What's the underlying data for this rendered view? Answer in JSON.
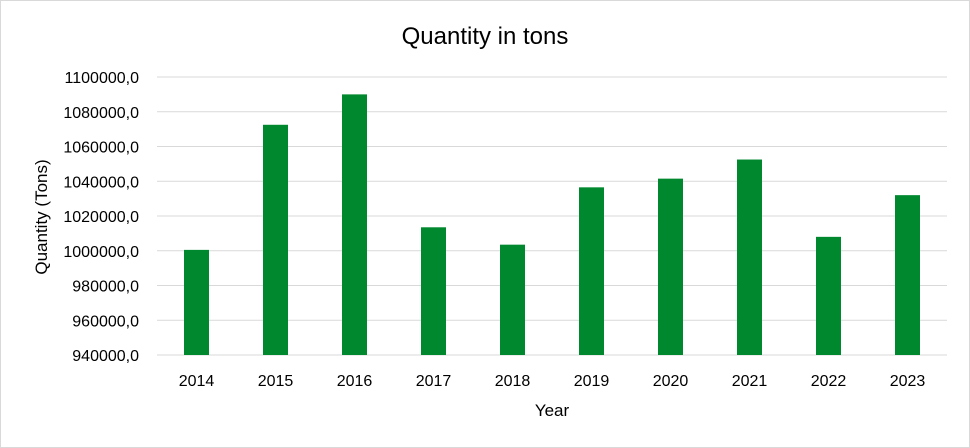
{
  "chart_data": {
    "type": "bar",
    "title": "Quantity in tons",
    "xlabel": "Year",
    "ylabel": "Quantity (Tons)",
    "categories": [
      "2014",
      "2015",
      "2016",
      "2017",
      "2018",
      "2019",
      "2020",
      "2021",
      "2022",
      "2023"
    ],
    "values": [
      1000500,
      1072500,
      1090000,
      1013500,
      1003500,
      1036500,
      1041500,
      1052500,
      1008000,
      1032000
    ],
    "ylim": [
      940000,
      1100000
    ],
    "yticks": [
      940000,
      960000,
      980000,
      1000000,
      1020000,
      1040000,
      1060000,
      1080000,
      1100000
    ],
    "ytick_labels": [
      "940000,0",
      "960000,0",
      "980000,0",
      "1000000,0",
      "1020000,0",
      "1040000,0",
      "1060000,0",
      "1080000,0",
      "1100000,0"
    ],
    "grid": true,
    "legend": "none",
    "bar_color": "#00882f"
  }
}
